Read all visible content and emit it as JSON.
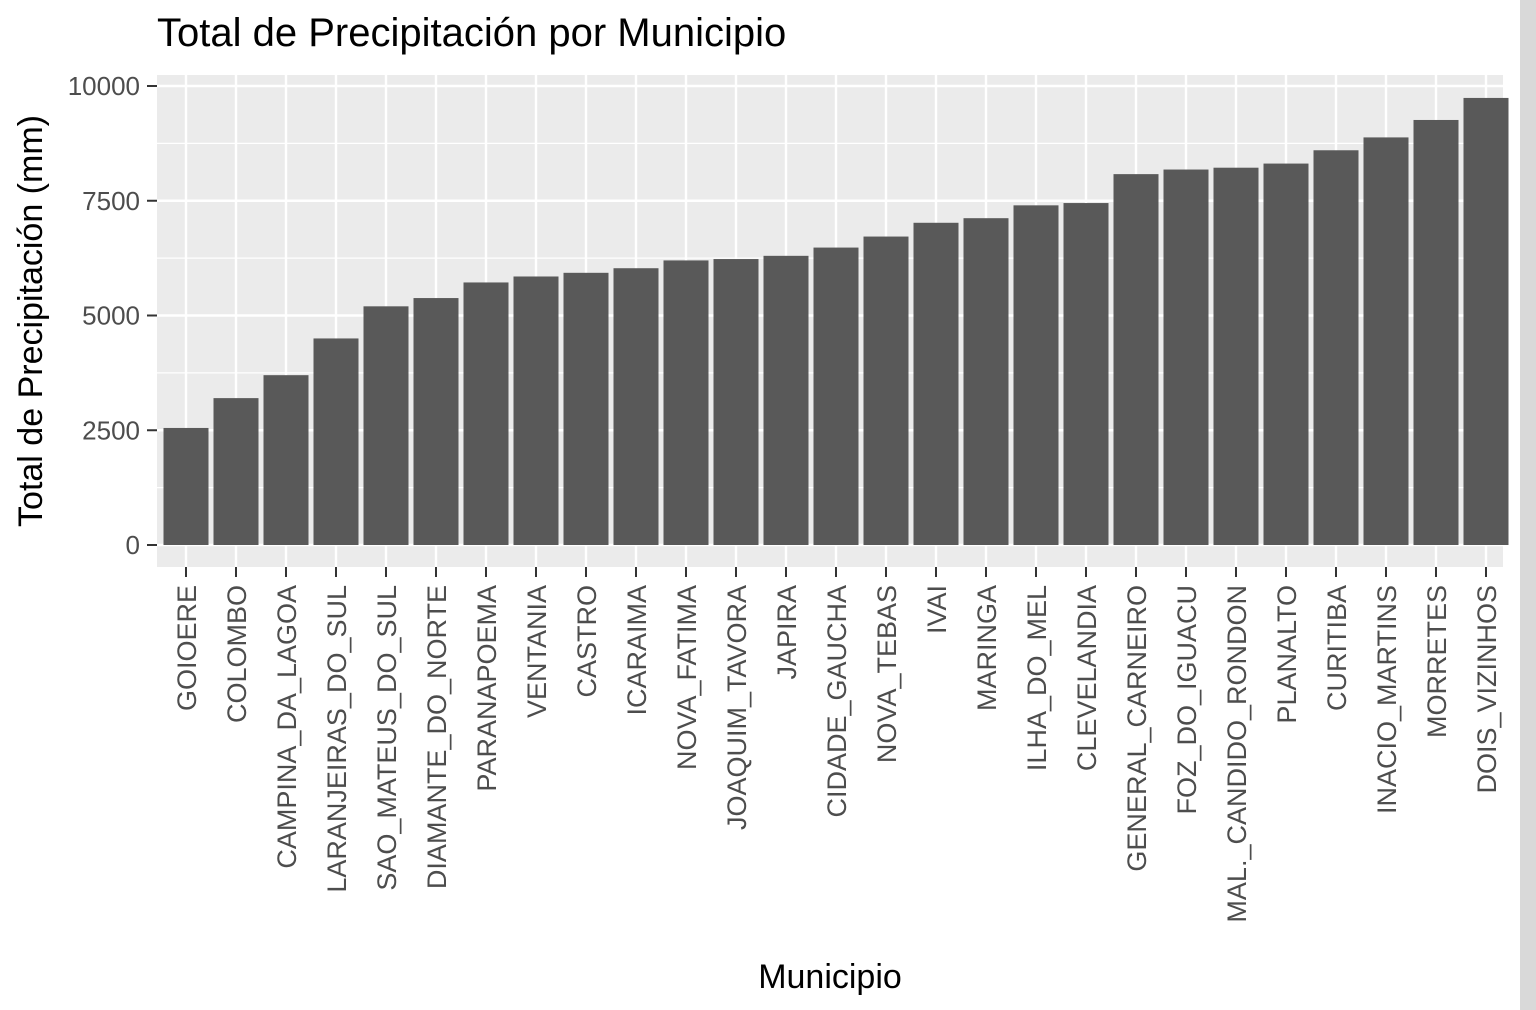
{
  "chart_data": {
    "type": "bar",
    "title": "Total de Precipitación por Municipio",
    "xlabel": "Municipio",
    "ylabel": "Total de Precipitación (mm)",
    "ylim": [
      0,
      10000
    ],
    "yticks": [
      "0",
      "2500",
      "5000",
      "7500",
      "10000"
    ],
    "ytick_values": [
      0,
      2500,
      5000,
      7500,
      10000
    ],
    "grid": true,
    "categories": [
      "GOIOERE",
      "COLOMBO",
      "CAMPINA_DA_LAGOA",
      "LARANJEIRAS_DO_SUL",
      "SAO_MATEUS_DO_SUL",
      "DIAMANTE_DO_NORTE",
      "PARANAPOEMA",
      "VENTANIA",
      "CASTRO",
      "ICARAIMA",
      "NOVA_FATIMA",
      "JOAQUIM_TAVORA",
      "JAPIRA",
      "CIDADE_GAUCHA",
      "NOVA_TEBAS",
      "IVAI",
      "MARINGA",
      "ILHA_DO_MEL",
      "CLEVELANDIA",
      "GENERAL_CARNEIRO",
      "FOZ_DO_IGUACU",
      "MAL._CANDIDO_RONDON",
      "PLANALTO",
      "CURITIBA",
      "INACIO_MARTINS",
      "MORRETES",
      "DOIS_VIZINHOS"
    ],
    "values": [
      2550,
      3200,
      3700,
      4500,
      5200,
      5380,
      5720,
      5850,
      5930,
      6030,
      6200,
      6230,
      6300,
      6480,
      6720,
      7020,
      7120,
      7400,
      7450,
      8080,
      8180,
      8220,
      8310,
      8600,
      8880,
      9260,
      9740
    ],
    "colors": {
      "bar": "#595959",
      "panel": "#ebebeb",
      "grid": "#ffffff",
      "tick_text": "#4d4d4d",
      "tick_mark": "#333333",
      "text": "#000000"
    }
  }
}
